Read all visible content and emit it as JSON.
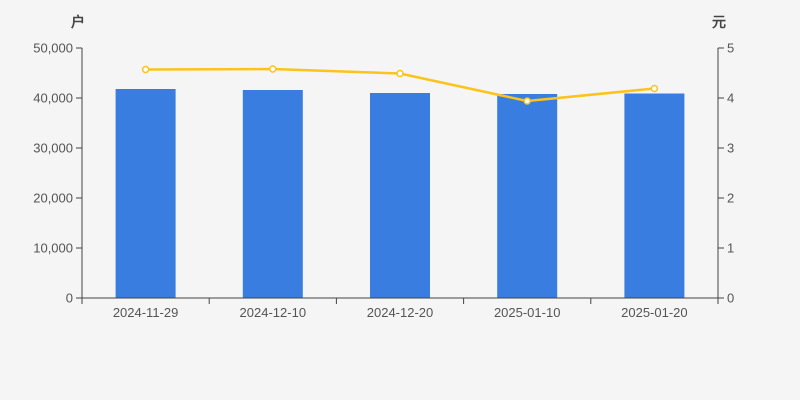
{
  "colors": {
    "background": "#f5f5f6",
    "bar": "#3a7de0",
    "line": "#fbc31b",
    "marker_fill": "#ffffff",
    "axis_line": "#444444",
    "tick_label": "#555555",
    "axis_name": "#444444"
  },
  "chart_data": {
    "type": "bar",
    "title": "",
    "categories": [
      "2024-11-29",
      "2024-12-10",
      "2024-12-20",
      "2025-01-10",
      "2025-01-20"
    ],
    "series": [
      {
        "type": "bar",
        "axis": "left",
        "values": [
          41800,
          41600,
          41000,
          40800,
          40900
        ]
      },
      {
        "type": "line",
        "axis": "right",
        "values": [
          4.57,
          4.58,
          4.49,
          3.94,
          4.19
        ]
      }
    ],
    "left_axis": {
      "name": "户",
      "min": 0,
      "max": 50000,
      "interval": 10000
    },
    "right_axis": {
      "name": "元",
      "min": 0,
      "max": 5,
      "interval": 1
    },
    "grid": false,
    "legend": false
  }
}
